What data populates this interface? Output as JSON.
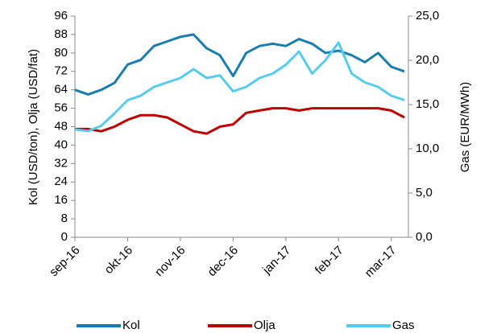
{
  "chart_data": {
    "type": "line",
    "y_label": "Kol (USD/ton), Olja (USD/fat)",
    "y2_label": "Gas (EUR/MWh)",
    "categories": [
      "sep-16",
      null,
      null,
      null,
      "okt-16",
      null,
      null,
      null,
      "nov-16",
      null,
      null,
      null,
      "dec-16",
      null,
      null,
      null,
      "jan-17",
      null,
      null,
      null,
      "feb-17",
      null,
      null,
      null,
      "mar-17",
      null
    ],
    "series": [
      {
        "name": "Kol",
        "color": "#1a7db0",
        "values": [
          64,
          62,
          64,
          67,
          75,
          77,
          83,
          85,
          87,
          88,
          82,
          79,
          70,
          80,
          83,
          84,
          83,
          86,
          84,
          80,
          81,
          79,
          76,
          80,
          74,
          72
        ]
      },
      {
        "name": "Olja",
        "color": "#c00000",
        "values": [
          47,
          47,
          46,
          48,
          51,
          53,
          53,
          52,
          49,
          46,
          45,
          48,
          49,
          54,
          55,
          56,
          56,
          55,
          56,
          56,
          56,
          56,
          56,
          56,
          55,
          52
        ]
      },
      {
        "name": "Gas",
        "color": "#55cbf0",
        "axis": "y2",
        "values": [
          12.2,
          12,
          12.6,
          14,
          15.5,
          16,
          17,
          17.5,
          18,
          19,
          18,
          18.3,
          16.5,
          17,
          18,
          18.5,
          19.5,
          21,
          18.5,
          20,
          22,
          18.5,
          17.5,
          17,
          16,
          15.5
        ]
      }
    ],
    "ylim": [
      0,
      96
    ],
    "yticks": [
      0,
      8,
      16,
      24,
      32,
      40,
      48,
      56,
      64,
      72,
      80,
      88,
      96
    ],
    "y2lim": [
      0,
      25
    ],
    "y2ticks": [
      {
        "value": 0,
        "label": "0,0"
      },
      {
        "value": 5,
        "label": "5,0"
      },
      {
        "value": 10,
        "label": "10,0"
      },
      {
        "value": 15,
        "label": "15,0"
      },
      {
        "value": 20,
        "label": "20,0"
      },
      {
        "value": 25,
        "label": "25,0"
      }
    ],
    "legend": "bottom"
  }
}
